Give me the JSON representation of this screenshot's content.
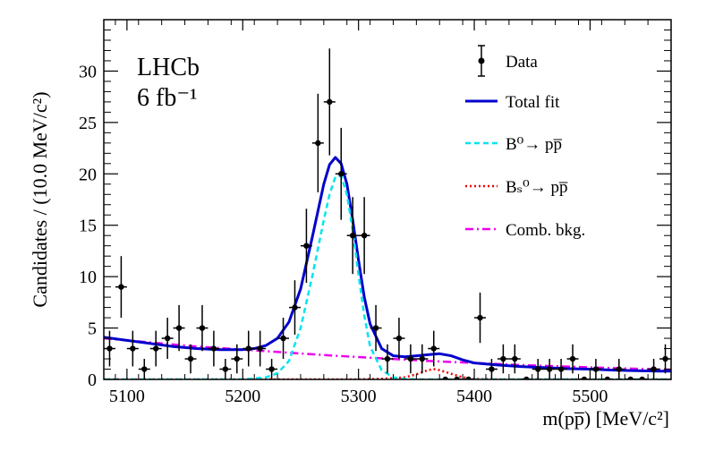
{
  "chart_data": {
    "type": "scatter",
    "title": "",
    "annotations": [
      "LHCb",
      "6 fb⁻¹"
    ],
    "xlabel": "m(pp̅) [MeV/c²]",
    "ylabel": "Candidates / (10.0 MeV/c²)",
    "xlim": [
      5080,
      5570
    ],
    "ylim": [
      0,
      35
    ],
    "xticks": [
      5100,
      5200,
      5300,
      5400,
      5500
    ],
    "yticks": [
      0,
      5,
      10,
      15,
      20,
      25,
      30
    ],
    "legend": [
      {
        "label": "Data",
        "style": "marker",
        "color": "#000000"
      },
      {
        "label": "Total fit",
        "style": "solid",
        "color": "#0000cc"
      },
      {
        "label": "B⁰→ pp̅",
        "style": "dashed",
        "color": "#00e5ee"
      },
      {
        "label": "Bₛ⁰→ pp̅",
        "style": "dotted",
        "color": "#ee0000"
      },
      {
        "label": "Comb. bkg.",
        "style": "dashdot",
        "color": "#ee00ee"
      }
    ],
    "data_points": {
      "x": [
        5085,
        5095,
        5105,
        5115,
        5125,
        5135,
        5145,
        5155,
        5165,
        5175,
        5185,
        5195,
        5205,
        5215,
        5225,
        5235,
        5245,
        5255,
        5265,
        5275,
        5285,
        5295,
        5305,
        5315,
        5325,
        5335,
        5345,
        5355,
        5365,
        5375,
        5385,
        5395,
        5405,
        5415,
        5425,
        5435,
        5445,
        5455,
        5465,
        5475,
        5485,
        5495,
        5505,
        5515,
        5525,
        5535,
        5545,
        5555,
        5565
      ],
      "y": [
        3,
        9,
        3,
        1,
        3,
        4,
        5,
        2,
        5,
        3,
        1,
        2,
        3,
        3,
        1,
        4,
        7,
        13,
        23,
        27,
        20,
        14,
        14,
        5,
        2,
        4,
        2,
        2,
        3,
        0,
        0,
        0,
        6,
        1,
        2,
        2,
        0,
        1,
        1,
        1,
        2,
        0,
        1,
        0,
        1,
        0,
        0,
        1,
        2
      ]
    },
    "series": [
      {
        "name": "Total fit",
        "x": [
          5080,
          5100,
          5120,
          5140,
          5160,
          5180,
          5200,
          5210,
          5220,
          5230,
          5240,
          5250,
          5260,
          5270,
          5275,
          5280,
          5285,
          5290,
          5295,
          5300,
          5305,
          5310,
          5320,
          5330,
          5340,
          5350,
          5360,
          5370,
          5380,
          5390,
          5400,
          5420,
          5440,
          5460,
          5480,
          5500,
          5520,
          5540,
          5560,
          5570
        ],
        "y": [
          4.1,
          3.8,
          3.5,
          3.2,
          3.0,
          2.9,
          2.9,
          3.0,
          3.3,
          4.0,
          5.6,
          8.8,
          13.8,
          19.0,
          20.9,
          21.6,
          21.0,
          19.0,
          15.5,
          11.6,
          8.0,
          5.4,
          3.0,
          2.3,
          2.2,
          2.3,
          2.4,
          2.5,
          2.3,
          1.9,
          1.6,
          1.4,
          1.25,
          1.15,
          1.05,
          1.0,
          0.9,
          0.85,
          0.8,
          0.8
        ]
      },
      {
        "name": "B⁰→ pp̅",
        "x": [
          5080,
          5200,
          5220,
          5230,
          5240,
          5250,
          5260,
          5270,
          5275,
          5280,
          5285,
          5290,
          5295,
          5300,
          5305,
          5310,
          5320,
          5330,
          5340,
          5350,
          5570
        ],
        "y": [
          0,
          0,
          0.2,
          0.6,
          1.8,
          5.0,
          10.0,
          15.5,
          18.0,
          19.7,
          19.8,
          18.0,
          14.5,
          10.2,
          6.2,
          3.2,
          0.9,
          0.2,
          0.05,
          0,
          0
        ]
      },
      {
        "name": "Bₛ⁰→ pp̅",
        "x": [
          5080,
          5300,
          5320,
          5340,
          5350,
          5360,
          5365,
          5370,
          5380,
          5390,
          5400,
          5420,
          5450,
          5570
        ],
        "y": [
          0,
          0,
          0.05,
          0.2,
          0.5,
          0.9,
          1.0,
          0.9,
          0.55,
          0.2,
          0.05,
          0,
          0,
          0
        ]
      },
      {
        "name": "Comb. bkg.",
        "x": [
          5080,
          5120,
          5160,
          5200,
          5240,
          5280,
          5320,
          5360,
          5400,
          5440,
          5480,
          5520,
          5570
        ],
        "y": [
          4.0,
          3.6,
          3.2,
          2.9,
          2.6,
          2.3,
          2.05,
          1.8,
          1.6,
          1.4,
          1.25,
          1.1,
          0.95
        ]
      }
    ]
  }
}
